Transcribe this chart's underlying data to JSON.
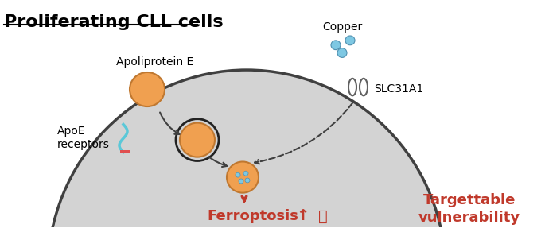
{
  "title": "Proliferating CLL cells",
  "cell_color": "#d3d3d3",
  "cell_edge_color": "#404040",
  "apoe_color": "#f0a050",
  "apoe_label": "Apoliprotein E",
  "apoe_receptor_label": "ApoE\nreceptors",
  "copper_label": "Copper",
  "slc_label": "SLC31A1",
  "ferroptosis_label": "Ferroptosis",
  "ferroptosis_color": "#c0392b",
  "target_label": "Targettable\nvulnerability",
  "target_color": "#c0392b",
  "bg_color": "#ffffff",
  "blue_dot_color": "#7ec8e3",
  "dark_gray": "#404040"
}
